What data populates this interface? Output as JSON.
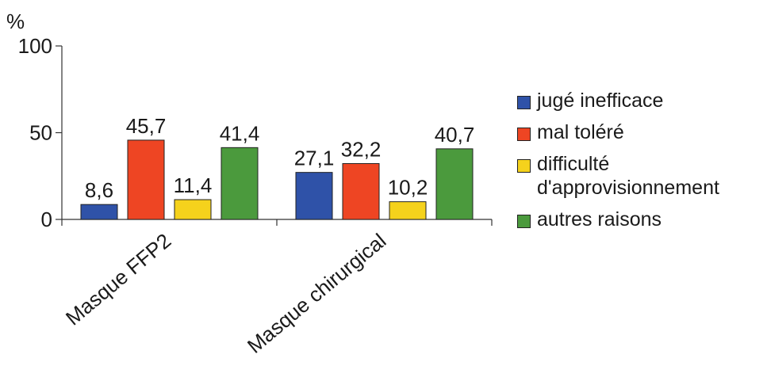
{
  "chart_data": {
    "type": "bar",
    "ylabel": "%",
    "ylim": [
      0,
      100
    ],
    "yticks": [
      0,
      50,
      100
    ],
    "categories": [
      "Masque FFP2",
      "Masque chirurgical"
    ],
    "series": [
      {
        "name": "jugé inefficace",
        "color": "#2f52a8",
        "values": [
          8.6,
          27.1
        ],
        "labels": [
          "8,6",
          "27,1"
        ]
      },
      {
        "name": "mal toléré",
        "color": "#ee4523",
        "values": [
          45.7,
          32.2
        ],
        "labels": [
          "45,7",
          "32,2"
        ]
      },
      {
        "name": "difficulté\nd'approvisionnement",
        "color": "#f5d21c",
        "values": [
          11.4,
          10.2
        ],
        "labels": [
          "11,4",
          "10,2"
        ]
      },
      {
        "name": "autres raisons",
        "color": "#4b9a3d",
        "values": [
          41.4,
          40.7
        ],
        "labels": [
          "41,4",
          "40,7"
        ]
      }
    ],
    "legend_position": "right",
    "grid": false
  }
}
